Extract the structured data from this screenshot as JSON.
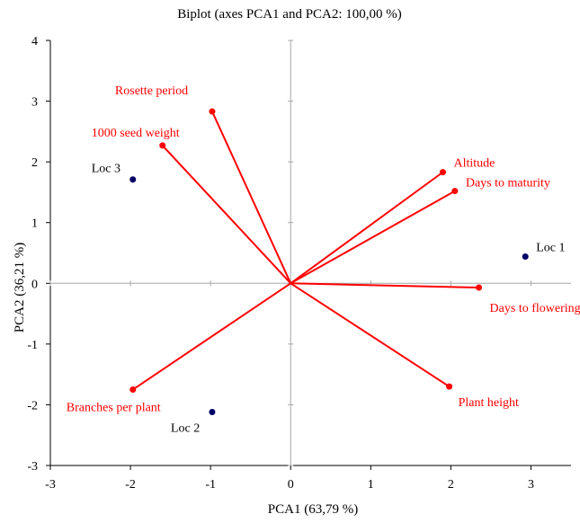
{
  "chart_data": {
    "type": "scatter",
    "title": "Biplot (axes PCA1 and PCA2: 100,00 %)",
    "xlabel": "PCA1 (63,79 %)",
    "ylabel": "PCA2 (36,21 %)",
    "xlim": [
      -3,
      3.5
    ],
    "ylim": [
      -3,
      4
    ],
    "xticks": [
      -3,
      -2,
      -1,
      0,
      1,
      2,
      3
    ],
    "yticks": [
      -3,
      -2,
      -1,
      0,
      1,
      2,
      3,
      4
    ],
    "grid": false,
    "variables": [
      {
        "name": "Rosette period",
        "x": -0.98,
        "y": 2.83
      },
      {
        "name": "1000 seed weight",
        "x": -1.6,
        "y": 2.27
      },
      {
        "name": "Altitude",
        "x": 1.9,
        "y": 1.83
      },
      {
        "name": "Days to maturity",
        "x": 2.05,
        "y": 1.52
      },
      {
        "name": "Days to flowering",
        "x": 2.35,
        "y": -0.07
      },
      {
        "name": "Plant height",
        "x": 1.98,
        "y": -1.7
      },
      {
        "name": "Branches per plant",
        "x": -1.97,
        "y": -1.75
      }
    ],
    "observations": [
      {
        "name": "Loc 1",
        "x": 2.93,
        "y": 0.44
      },
      {
        "name": "Loc 2",
        "x": -0.98,
        "y": -2.12
      },
      {
        "name": "Loc 3",
        "x": -1.97,
        "y": 1.71
      }
    ],
    "colors": {
      "variables": "#ff0000",
      "observations": "#000066",
      "axes": "#000000",
      "zero_lines": "#a6a6a6",
      "observation_labels": "#000000"
    }
  }
}
